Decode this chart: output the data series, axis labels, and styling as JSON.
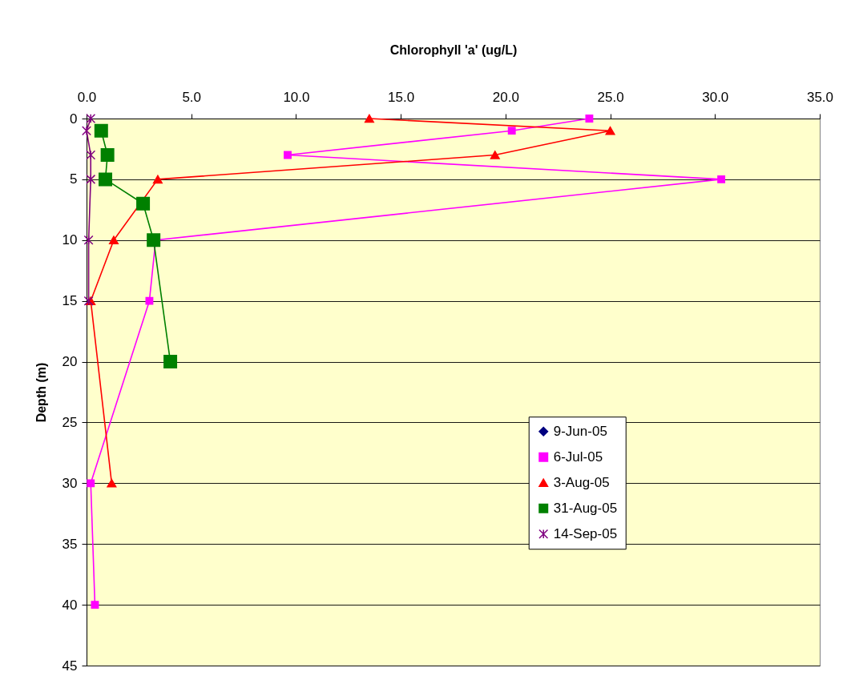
{
  "chart_data": {
    "type": "line",
    "xlabel": "Chlorophyll 'a' (ug/L)",
    "ylabel": "Depth (m)",
    "xlim": [
      0,
      35
    ],
    "xticks": [
      {
        "value": 0,
        "label": "0.0"
      },
      {
        "value": 5,
        "label": "5.0"
      },
      {
        "value": 10,
        "label": "10.0"
      },
      {
        "value": 15,
        "label": "15.0"
      },
      {
        "value": 20,
        "label": "20.0"
      },
      {
        "value": 25,
        "label": "25.0"
      },
      {
        "value": 30,
        "label": "30.0"
      },
      {
        "value": 35,
        "label": "35.0"
      }
    ],
    "ylim": [
      45,
      0
    ],
    "yticks": [
      0,
      5,
      10,
      15,
      20,
      25,
      30,
      35,
      40,
      45
    ],
    "grid": "y",
    "legend": "bottom right",
    "line_style": "solid",
    "series": [
      {
        "name": "9-Jun-05",
        "color": "#000080",
        "marker": "diamond"
      },
      {
        "name": "6-Jul-05",
        "color": "#ff00ff",
        "marker": "square",
        "x": [
          24.0,
          20.3,
          9.6,
          30.3,
          3.3,
          3.0,
          0.2,
          0.4
        ],
        "values": [
          0,
          1,
          3,
          5,
          10,
          15,
          30,
          40
        ]
      },
      {
        "name": "3-Aug-05",
        "color": "#ff0000",
        "marker": "triangle",
        "x": [
          13.5,
          25.0,
          19.5,
          3.4,
          1.3,
          0.2,
          1.2
        ],
        "values": [
          0,
          1,
          3,
          5,
          10,
          15,
          30
        ]
      },
      {
        "name": "31-Aug-05",
        "color": "#008000",
        "marker": "square",
        "x": [
          0.7,
          1.0,
          0.9,
          2.7,
          3.2,
          4.0
        ],
        "values": [
          1,
          3,
          5,
          7,
          10,
          20
        ]
      },
      {
        "name": "14-Sep-05",
        "color": "#800080",
        "marker": "cross",
        "x": [
          0.2,
          0.0,
          0.2,
          0.2,
          0.1,
          0.1
        ],
        "values": [
          0,
          1,
          3,
          5,
          10,
          15
        ]
      }
    ]
  }
}
